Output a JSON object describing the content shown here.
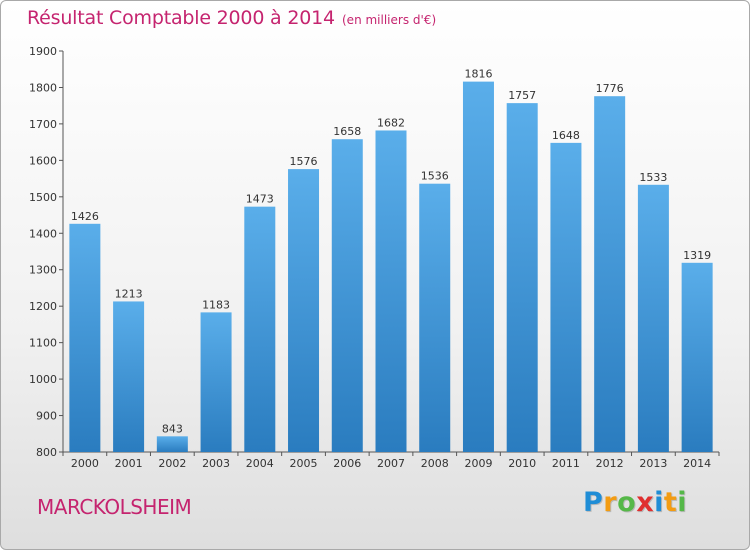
{
  "chart_data": {
    "type": "bar",
    "title": "Résultat Comptable 2000 à 2014",
    "subtitle": "(en milliers d'€)",
    "categories": [
      "2000",
      "2001",
      "2002",
      "2003",
      "2004",
      "2005",
      "2006",
      "2007",
      "2008",
      "2009",
      "2010",
      "2011",
      "2012",
      "2013",
      "2014"
    ],
    "series": [
      {
        "values": [
          1426,
          1213,
          843,
          1183,
          1473,
          1576,
          1658,
          1682,
          1536,
          1816,
          1757,
          1648,
          1776,
          1533,
          1319
        ]
      }
    ],
    "ylim": [
      800,
      1900
    ],
    "yticks": [
      800,
      900,
      1000,
      1100,
      1200,
      1300,
      1400,
      1500,
      1600,
      1700,
      1800,
      1900
    ],
    "grid": false,
    "legend": "none",
    "data_labels": true,
    "bar_color_top": "#5aaeea",
    "bar_color_bottom": "#2a7cbf"
  },
  "footer": {
    "place": "MARCKOLSHEIM"
  },
  "logo": {
    "text": "Proxiti",
    "letters": [
      {
        "ch": "P",
        "color": "#1f8dd6"
      },
      {
        "ch": "r",
        "color": "#f39c12"
      },
      {
        "ch": "o",
        "color": "#55b848"
      },
      {
        "ch": "x",
        "color": "#e02f2f"
      },
      {
        "ch": "i",
        "color": "#1f8dd6"
      },
      {
        "ch": "t",
        "color": "#f39c12"
      },
      {
        "ch": "i",
        "color": "#55b848"
      }
    ]
  },
  "colors": {
    "accent": "#c5246f",
    "axis": "#555555",
    "text": "#333333"
  }
}
